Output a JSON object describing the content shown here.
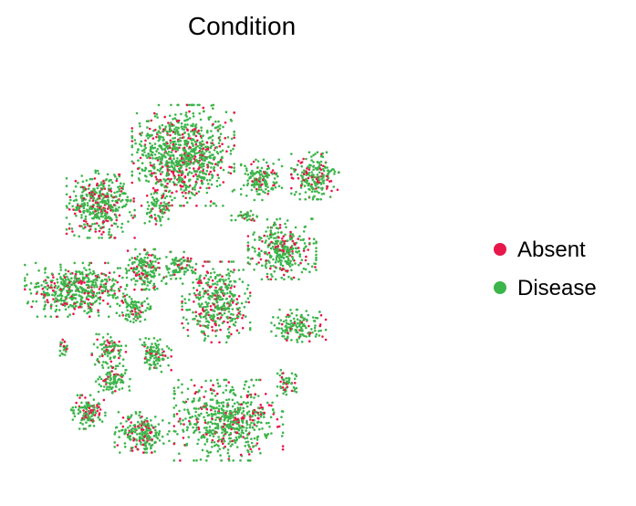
{
  "chart_data": {
    "type": "scatter",
    "title": "Condition",
    "xlabel": "",
    "ylabel": "",
    "grid": false,
    "axes_visible": false,
    "legend_position": "right",
    "series": [
      {
        "name": "Absent",
        "color": "#e8174a"
      },
      {
        "name": "Disease",
        "color": "#3cb54a"
      }
    ],
    "clusters": [
      {
        "center": [
          0.36,
          0.78
        ],
        "spread": [
          0.075,
          0.075
        ],
        "count": 900,
        "absent_fraction": 0.22
      },
      {
        "center": [
          0.16,
          0.66
        ],
        "spread": [
          0.05,
          0.05
        ],
        "count": 420,
        "absent_fraction": 0.22
      },
      {
        "center": [
          0.55,
          0.72
        ],
        "spread": [
          0.03,
          0.03
        ],
        "count": 150,
        "absent_fraction": 0.22
      },
      {
        "center": [
          0.68,
          0.73
        ],
        "spread": [
          0.035,
          0.035
        ],
        "count": 200,
        "absent_fraction": 0.22
      },
      {
        "center": [
          0.6,
          0.55
        ],
        "spread": [
          0.05,
          0.045
        ],
        "count": 330,
        "absent_fraction": 0.22
      },
      {
        "center": [
          0.1,
          0.45
        ],
        "spread": [
          0.075,
          0.04
        ],
        "count": 480,
        "absent_fraction": 0.22
      },
      {
        "center": [
          0.27,
          0.5
        ],
        "spread": [
          0.03,
          0.03
        ],
        "count": 170,
        "absent_fraction": 0.22
      },
      {
        "center": [
          0.35,
          0.51
        ],
        "spread": [
          0.02,
          0.02
        ],
        "count": 80,
        "absent_fraction": 0.22
      },
      {
        "center": [
          0.24,
          0.4
        ],
        "spread": [
          0.025,
          0.02
        ],
        "count": 90,
        "absent_fraction": 0.22
      },
      {
        "center": [
          0.44,
          0.42
        ],
        "spread": [
          0.05,
          0.06
        ],
        "count": 400,
        "absent_fraction": 0.22
      },
      {
        "center": [
          0.64,
          0.36
        ],
        "spread": [
          0.04,
          0.025
        ],
        "count": 150,
        "absent_fraction": 0.22
      },
      {
        "center": [
          0.29,
          0.29
        ],
        "spread": [
          0.025,
          0.025
        ],
        "count": 110,
        "absent_fraction": 0.22
      },
      {
        "center": [
          0.18,
          0.3
        ],
        "spread": [
          0.025,
          0.025
        ],
        "count": 90,
        "absent_fraction": 0.22
      },
      {
        "center": [
          0.19,
          0.23
        ],
        "spread": [
          0.025,
          0.02
        ],
        "count": 90,
        "absent_fraction": 0.22
      },
      {
        "center": [
          0.13,
          0.15
        ],
        "spread": [
          0.025,
          0.025
        ],
        "count": 120,
        "absent_fraction": 0.22
      },
      {
        "center": [
          0.26,
          0.1
        ],
        "spread": [
          0.04,
          0.03
        ],
        "count": 220,
        "absent_fraction": 0.22
      },
      {
        "center": [
          0.47,
          0.13
        ],
        "spread": [
          0.08,
          0.06
        ],
        "count": 600,
        "absent_fraction": 0.22
      },
      {
        "center": [
          0.61,
          0.22
        ],
        "spread": [
          0.015,
          0.02
        ],
        "count": 50,
        "absent_fraction": 0.22
      },
      {
        "center": [
          0.3,
          0.65
        ],
        "spread": [
          0.02,
          0.025
        ],
        "count": 70,
        "absent_fraction": 0.22
      },
      {
        "center": [
          0.51,
          0.63
        ],
        "spread": [
          0.02,
          0.01
        ],
        "count": 35,
        "absent_fraction": 0.22
      },
      {
        "center": [
          0.07,
          0.31
        ],
        "spread": [
          0.01,
          0.015
        ],
        "count": 25,
        "absent_fraction": 0.22
      }
    ]
  }
}
